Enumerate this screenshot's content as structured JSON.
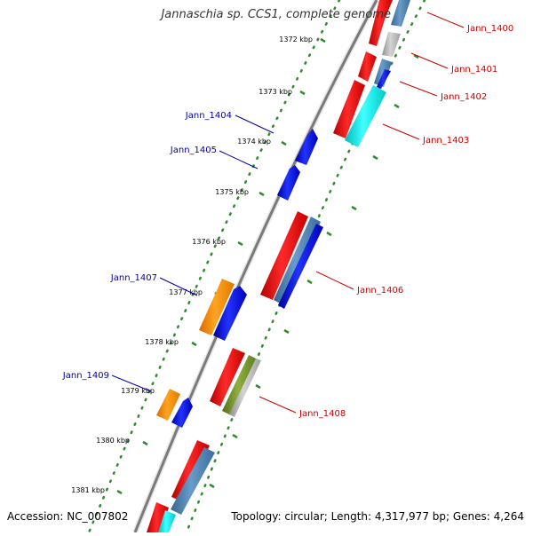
{
  "title": "Jannaschia sp. CCS1, complete genome",
  "footer": {
    "accession": "Accession: NC_007802",
    "topology": "Topology: circular; Length: 4,317,977 bp; Genes: 4,264"
  },
  "ticks": [
    "1372 kbp",
    "1373 kbp",
    "1374 kbp",
    "1375 kbp",
    "1376 kbp",
    "1377 kbp",
    "1378 kbp",
    "1379 kbp",
    "1380 kbp",
    "1381 kbp"
  ],
  "gene_labels": {
    "Jann_1400": "Jann_1400",
    "Jann_1401": "Jann_1401",
    "Jann_1402": "Jann_1402",
    "Jann_1403": "Jann_1403",
    "Jann_1404": "Jann_1404",
    "Jann_1405": "Jann_1405",
    "Jann_1406": "Jann_1406",
    "Jann_1407": "Jann_1407",
    "Jann_1408": "Jann_1408",
    "Jann_1409": "Jann_1409"
  },
  "colors": {
    "forward_label": "#cc0000",
    "reverse_label": "#0000aa",
    "tick_dots": "#2e8b2e",
    "backbone": "#808080",
    "red": "#ff0000",
    "blue": "#0000ee",
    "orange": "#ff8c00",
    "steelblue": "#4682b4",
    "cyan": "#00e5e5",
    "olive": "#6b8e23",
    "gray": "#b0b0b0"
  }
}
